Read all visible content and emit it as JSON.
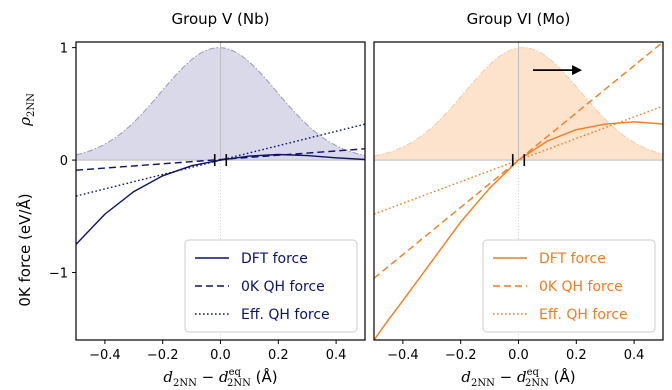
{
  "chart_data": [
    {
      "type": "line",
      "title": "Group V (Nb)",
      "color": "#0b1170",
      "fill_color": "#d9d9ea",
      "xlim": [
        -0.5,
        0.5
      ],
      "ylim": [
        -1.6,
        1.05
      ],
      "xticks": [
        -0.4,
        -0.2,
        0.0,
        0.2,
        0.4
      ],
      "xtick_labels": [
        "−0.4",
        "−0.2",
        "0.0",
        "0.2",
        "0.4"
      ],
      "yticks": [
        -1,
        0,
        1
      ],
      "ytick_labels": [
        "−1",
        "0",
        "1"
      ],
      "ylabel_upper": "ρ2NN",
      "ylabel_lower": "0K force (eV/Å)",
      "xlabel": "d2NN − d2NN^eq (Å)",
      "legend_position": "bottom-right",
      "distribution": {
        "center": -0.005,
        "sigma": 0.2,
        "peak": 1.0
      },
      "vertical_markers": [
        -0.02,
        0.02
      ],
      "series": [
        {
          "name": "DFT force",
          "style": "solid",
          "x": [
            -0.5,
            -0.4,
            -0.3,
            -0.2,
            -0.1,
            0.0,
            0.1,
            0.2,
            0.3,
            0.4,
            0.5
          ],
          "y": [
            -0.75,
            -0.48,
            -0.28,
            -0.14,
            -0.05,
            0.0,
            0.035,
            0.05,
            0.04,
            0.02,
            0.005
          ]
        },
        {
          "name": "0K QH force",
          "style": "dashed",
          "x": [
            -0.5,
            0.5
          ],
          "y": [
            -0.09,
            0.1
          ]
        },
        {
          "name": "Eff. QH force",
          "style": "dotted",
          "x": [
            -0.5,
            0.5
          ],
          "y": [
            -0.32,
            0.32
          ]
        }
      ]
    },
    {
      "type": "line",
      "title": "Group VI (Mo)",
      "color": "#f97a1c",
      "fill_color": "#fde3cc",
      "xlim": [
        -0.5,
        0.5
      ],
      "ylim": [
        -1.6,
        1.05
      ],
      "xticks": [
        -0.4,
        -0.2,
        0.0,
        0.2,
        0.4
      ],
      "xtick_labels": [
        "−0.4",
        "−0.2",
        "0.0",
        "0.2",
        "0.4"
      ],
      "xlabel": "d2NN − d2NN^eq (Å)",
      "legend_position": "bottom-right",
      "distribution": {
        "center": 0.015,
        "sigma": 0.2,
        "peak": 1.0
      },
      "arrow": {
        "x_start": 0.05,
        "x_end": 0.22,
        "y": 0.8
      },
      "vertical_markers": [
        -0.02,
        0.02
      ],
      "series": [
        {
          "name": "DFT force",
          "style": "solid",
          "x": [
            -0.5,
            -0.45,
            -0.4,
            -0.3,
            -0.2,
            -0.1,
            0.0,
            0.1,
            0.2,
            0.3,
            0.4,
            0.5
          ],
          "y": [
            -1.6,
            -1.42,
            -1.25,
            -0.9,
            -0.55,
            -0.25,
            0.0,
            0.17,
            0.27,
            0.32,
            0.34,
            0.32
          ]
        },
        {
          "name": "0K QH force",
          "style": "dashed",
          "x": [
            -0.5,
            0.5
          ],
          "y": [
            -1.05,
            1.05
          ]
        },
        {
          "name": "Eff. QH force",
          "style": "dotted",
          "x": [
            -0.5,
            0.5
          ],
          "y": [
            -0.48,
            0.48
          ]
        }
      ]
    }
  ]
}
